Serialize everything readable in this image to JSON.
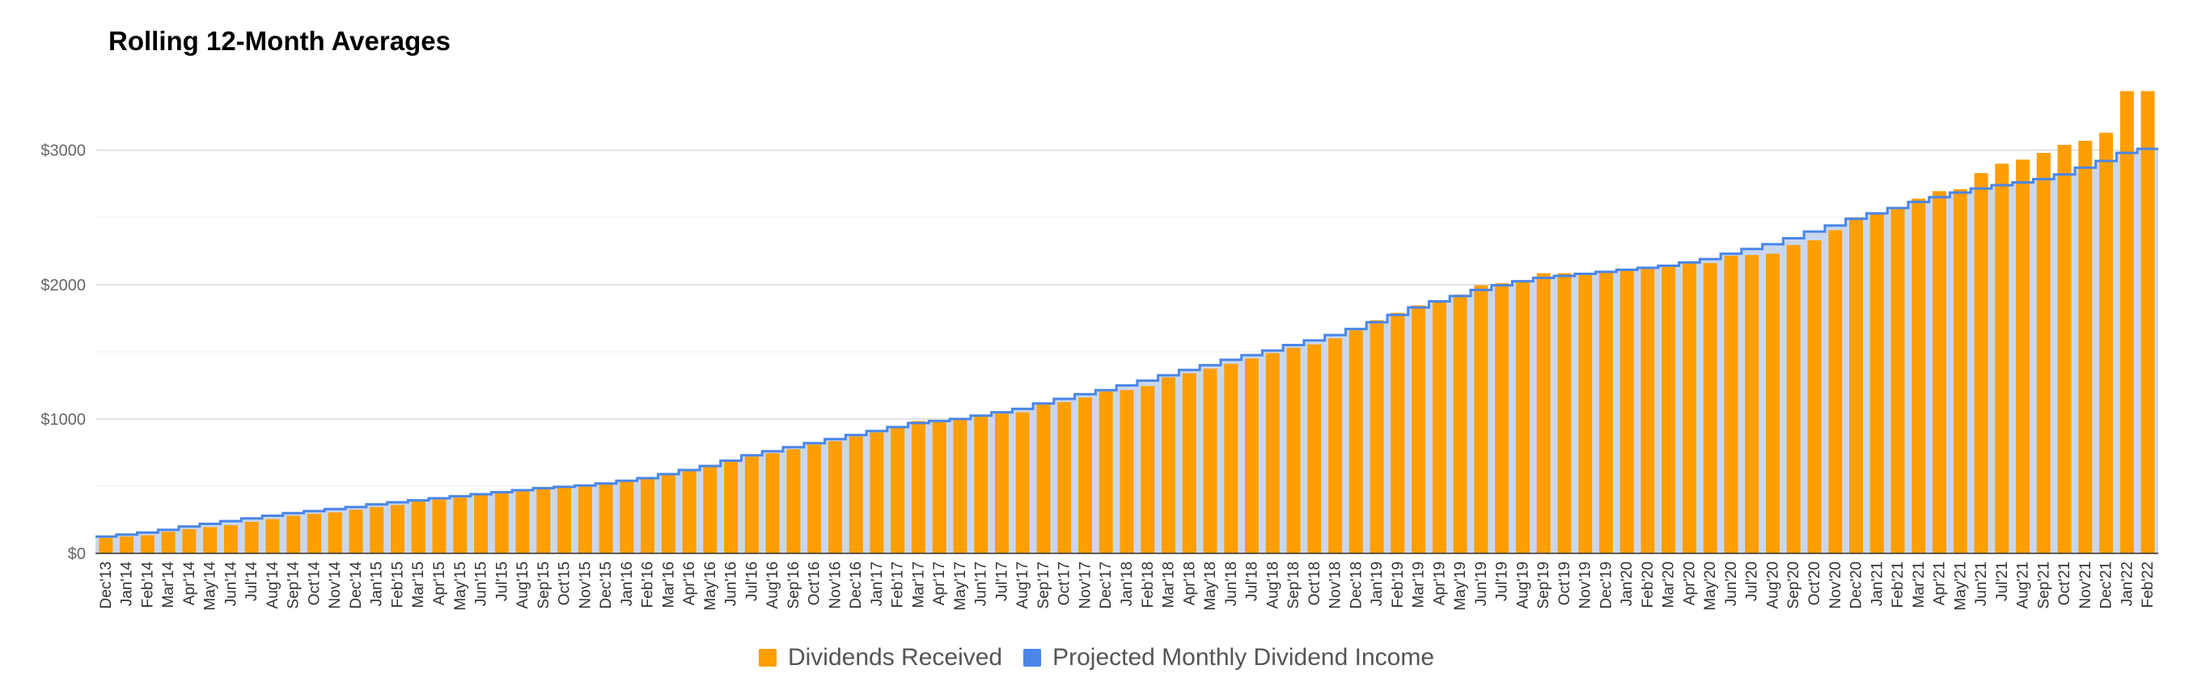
{
  "chart_data": {
    "type": "bar",
    "title": "Rolling 12-Month Averages",
    "xlabel": "",
    "ylabel": "",
    "ylim": [
      0,
      3600
    ],
    "y_ticks": [
      "$0",
      "$1000",
      "$2000",
      "$3000"
    ],
    "y_tick_values": [
      0,
      1000,
      2000,
      3000
    ],
    "grid": true,
    "legend_position": "bottom",
    "colors": {
      "bars": "#ff9e00",
      "line": "#4a86e8",
      "area": "#c9d7ee",
      "grid": "#d9d9d9"
    },
    "categories": [
      "Dec'13",
      "Jan'14",
      "Feb'14",
      "Mar'14",
      "Apr'14",
      "May'14",
      "Jun'14",
      "Jul'14",
      "Aug'14",
      "Sep'14",
      "Oct'14",
      "Nov'14",
      "Dec'14",
      "Jan'15",
      "Feb'15",
      "Mar'15",
      "Apr'15",
      "May'15",
      "Jun'15",
      "Jul'15",
      "Aug'15",
      "Sep'15",
      "Oct'15",
      "Nov'15",
      "Dec'15",
      "Jan'16",
      "Feb'16",
      "Mar'16",
      "Apr'16",
      "May'16",
      "Jun'16",
      "Jul'16",
      "Aug'16",
      "Sep'16",
      "Oct'16",
      "Nov'16",
      "Dec'16",
      "Jan'17",
      "Feb'17",
      "Mar'17",
      "Apr'17",
      "May'17",
      "Jun'17",
      "Jul'17",
      "Aug'17",
      "Sep'17",
      "Oct'17",
      "Nov'17",
      "Dec'17",
      "Jan'18",
      "Feb'18",
      "Mar'18",
      "Apr'18",
      "May'18",
      "Jun'18",
      "Jul'18",
      "Aug'18",
      "Sep'18",
      "Oct'18",
      "Nov'18",
      "Dec'18",
      "Jan'19",
      "Feb'19",
      "Mar'19",
      "Apr'19",
      "May'19",
      "Jun'19",
      "Jul'19",
      "Aug'19",
      "Sep'19",
      "Oct'19",
      "Nov'19",
      "Dec'19",
      "Jan'20",
      "Feb'20",
      "Mar'20",
      "Apr'20",
      "May'20",
      "Jun'20",
      "Jul'20",
      "Aug'20",
      "Sep'20",
      "Oct'20",
      "Nov'20",
      "Dec'20",
      "Jan'21",
      "Feb'21",
      "Mar'21",
      "Apr'21",
      "May'21",
      "Jun'21",
      "Jul'21",
      "Aug'21",
      "Sep'21",
      "Oct'21",
      "Nov'21",
      "Dec'21",
      "Jan'22",
      "Feb'22"
    ],
    "series": [
      {
        "name": "Dividends Received",
        "type": "bar",
        "values": [
          115,
          125,
          135,
          160,
          180,
          195,
          210,
          235,
          255,
          280,
          295,
          305,
          325,
          345,
          360,
          385,
          400,
          415,
          440,
          455,
          470,
          485,
          495,
          505,
          520,
          540,
          560,
          590,
          620,
          650,
          690,
          720,
          745,
          775,
          810,
          835,
          870,
          900,
          935,
          985,
          975,
          995,
          1020,
          1040,
          1050,
          1115,
          1125,
          1160,
          1205,
          1215,
          1245,
          1310,
          1340,
          1375,
          1410,
          1450,
          1490,
          1530,
          1555,
          1600,
          1660,
          1735,
          1790,
          1845,
          1880,
          1925,
          1995,
          2010,
          2025,
          2085,
          2085,
          2080,
          2100,
          2105,
          2115,
          2140,
          2165,
          2160,
          2215,
          2220,
          2230,
          2295,
          2330,
          2405,
          2500,
          2530,
          2565,
          2640,
          2695,
          2710,
          2830,
          2900,
          2930,
          2980,
          3040,
          3070,
          3130,
          3440,
          3440
        ]
      },
      {
        "name": "Projected Monthly Dividend Income",
        "type": "area-step",
        "values": [
          125,
          140,
          155,
          175,
          200,
          220,
          240,
          260,
          280,
          300,
          315,
          330,
          345,
          365,
          380,
          395,
          410,
          425,
          440,
          455,
          470,
          485,
          495,
          505,
          520,
          540,
          560,
          590,
          620,
          650,
          690,
          730,
          760,
          790,
          820,
          850,
          880,
          910,
          940,
          970,
          985,
          1000,
          1025,
          1050,
          1075,
          1115,
          1150,
          1185,
          1215,
          1250,
          1285,
          1325,
          1365,
          1400,
          1440,
          1475,
          1510,
          1550,
          1585,
          1625,
          1670,
          1720,
          1775,
          1830,
          1875,
          1915,
          1960,
          1995,
          2025,
          2050,
          2065,
          2080,
          2095,
          2110,
          2125,
          2140,
          2165,
          2190,
          2230,
          2265,
          2300,
          2345,
          2395,
          2440,
          2490,
          2530,
          2570,
          2615,
          2650,
          2685,
          2715,
          2740,
          2760,
          2785,
          2820,
          2870,
          2920,
          2980,
          3010
        ]
      }
    ]
  }
}
